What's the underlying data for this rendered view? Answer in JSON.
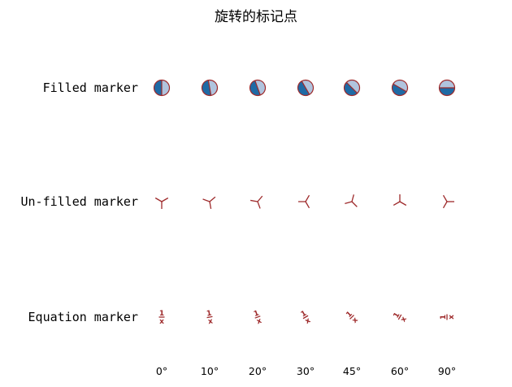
{
  "chart_data": {
    "type": "scatter",
    "title": "旋转的标记点",
    "rows": [
      {
        "label": "Filled marker",
        "kind": "filled"
      },
      {
        "label": "Un-filled marker",
        "kind": "unfilled"
      },
      {
        "label": "Equation marker",
        "kind": "equation"
      }
    ],
    "angles": [
      0,
      10,
      20,
      30,
      45,
      60,
      90
    ],
    "angle_labels": [
      "0°",
      "10°",
      "20°",
      "30°",
      "45°",
      "60°",
      "90°"
    ],
    "equation": {
      "numerator": "1",
      "denominator": "x"
    },
    "colors": {
      "edge": "#9e2a2b",
      "fill_primary": "#1f6aa5",
      "fill_secondary": "#b0c4de"
    },
    "grid": false,
    "axes_visible": false
  }
}
